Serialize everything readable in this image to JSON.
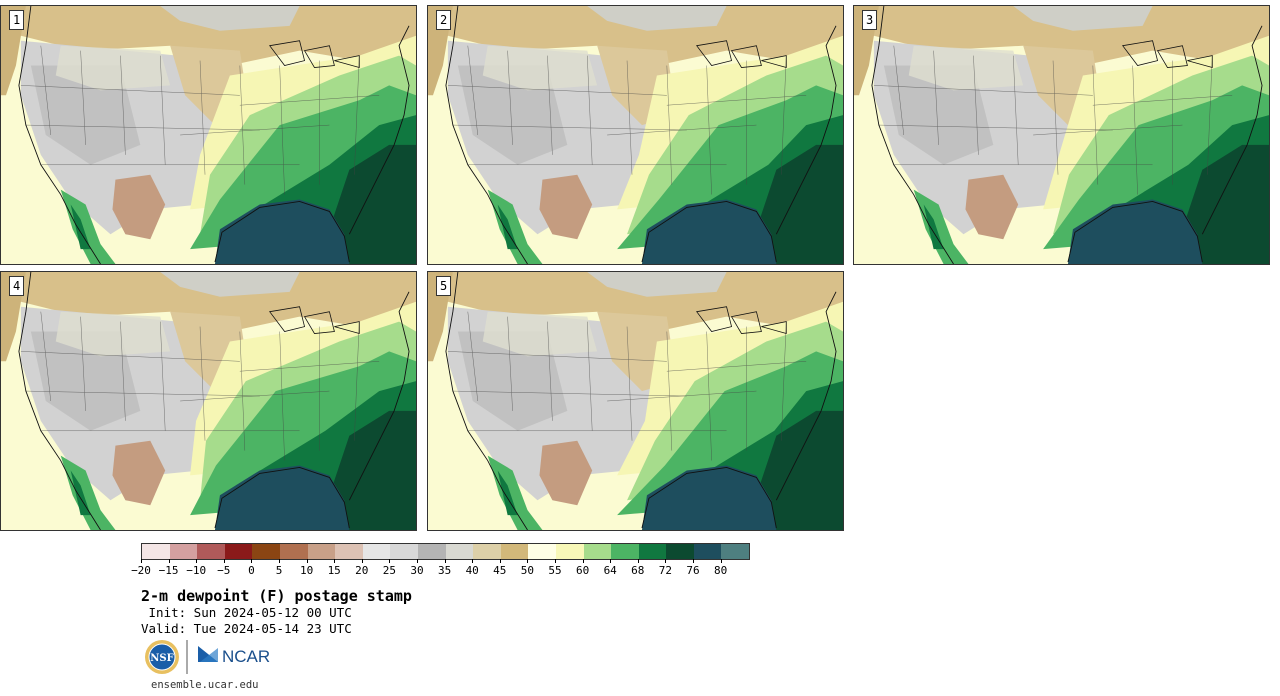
{
  "panels": [
    {
      "number": "1"
    },
    {
      "number": "2"
    },
    {
      "number": "3"
    },
    {
      "number": "4"
    },
    {
      "number": "5"
    }
  ],
  "title": "2-m dewpoint (F) postage stamp",
  "init_line": " Init: Sun 2024-05-12 00 UTC",
  "valid_line": "Valid: Tue 2024-05-14 23 UTC",
  "website": "ensemble.ucar.edu",
  "logos": {
    "nsf": "NSF",
    "ncar": "NCAR"
  },
  "colorbar": {
    "colors": [
      "#f4e6e6",
      "#d4a0a0",
      "#b05a5a",
      "#8b1a1a",
      "#8b4513",
      "#b07050",
      "#c8a088",
      "#ddc2b4",
      "#e6e6e6",
      "#d8d8d8",
      "#b4b4b4",
      "#d9d9d2",
      "#ddd0a8",
      "#d2b87a",
      "#ffffe6",
      "#f8f8b8",
      "#a6dc8c",
      "#4cb464",
      "#107840",
      "#0c4a30",
      "#1e4e5e",
      "#4e7f80"
    ],
    "tick_labels": [
      "−20",
      "−15",
      "−10",
      "−5",
      "0",
      "5",
      "10",
      "15",
      "20",
      "25",
      "30",
      "35",
      "40",
      "45",
      "50",
      "55",
      "60",
      "64",
      "68",
      "72",
      "76",
      "80"
    ]
  }
}
